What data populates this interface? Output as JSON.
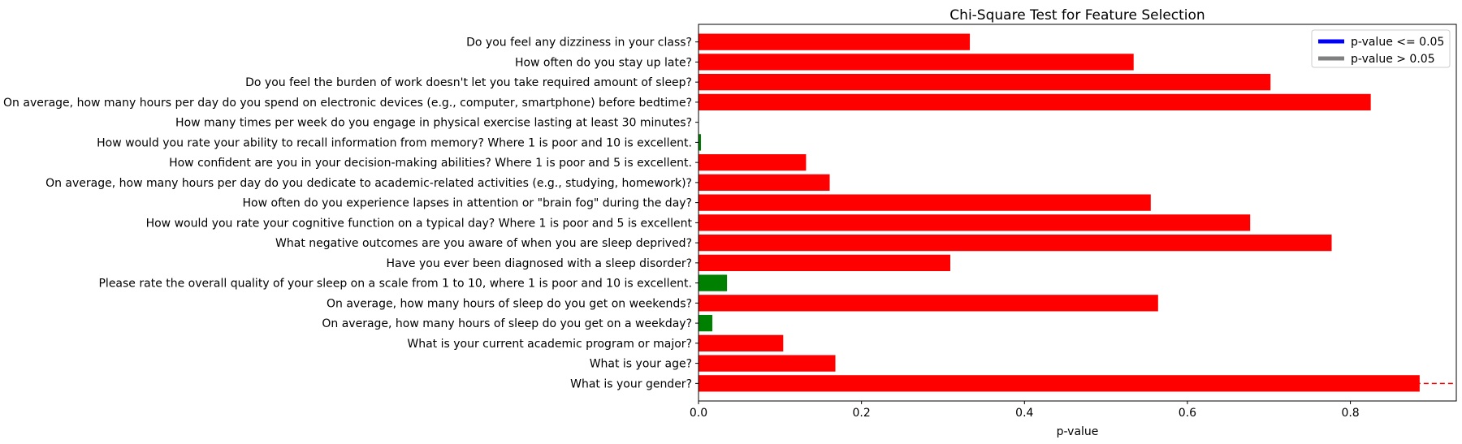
{
  "chart_data": {
    "type": "bar",
    "orientation": "horizontal",
    "title": "Chi-Square Test for Feature Selection",
    "xlabel": "p-value",
    "ylabel": "",
    "xlim": [
      0,
      0.93
    ],
    "x_ticks": [
      0.0,
      0.2,
      0.4,
      0.6,
      0.8
    ],
    "x_tick_labels": [
      "0.0",
      "0.2",
      "0.4",
      "0.6",
      "0.8"
    ],
    "significance_threshold": 0.05,
    "reference_line": {
      "value": 0.88,
      "color": "#ff0000",
      "style": "dashed"
    },
    "colors": {
      "significant": "#008000",
      "not_significant": "#ff0000"
    },
    "legend": {
      "position": "top-right",
      "entries": [
        {
          "label": "p-value <= 0.05",
          "color": "#0000ff"
        },
        {
          "label": "p-value > 0.05",
          "color": "#808080"
        }
      ]
    },
    "categories": [
      "What is your gender?",
      "What is your age?",
      "What is your current academic program or major?",
      "On average, how many hours of sleep do you get on a weekday?",
      "On average, how many hours of sleep do you get on weekends?",
      "Please rate the overall quality of your sleep on a scale from 1 to 10, where 1 is poor and 10 is excellent.",
      "Have you ever been diagnosed with a sleep disorder?",
      "What negative outcomes are you aware of when you are sleep deprived?",
      "How would you rate your cognitive function on a typical day? Where 1 is poor and 5 is excellent  ",
      "How often do you experience lapses in attention or \"brain fog\" during the day?",
      "On average, how many hours per day do you dedicate to academic-related activities (e.g., studying, homework)?",
      "How confident are you in your decision-making abilities? Where 1 is poor and 5 is excellent.",
      "How would you rate your ability to recall information from memory? Where 1 is poor and 10 is excellent.",
      "How many times per week do you engage in physical exercise lasting at least 30 minutes?",
      "On average, how many hours per day do you spend on electronic devices (e.g., computer, smartphone) before bedtime?",
      "Do you feel the burden of work doesn't let you take required amount of sleep?",
      "How often do you stay up late?",
      "Do you feel any dizziness in your class?"
    ],
    "values": [
      0.885,
      0.168,
      0.104,
      0.017,
      0.564,
      0.035,
      0.309,
      0.777,
      0.677,
      0.555,
      0.161,
      0.132,
      0.003,
      0.0005,
      0.825,
      0.702,
      0.534,
      0.333
    ]
  }
}
